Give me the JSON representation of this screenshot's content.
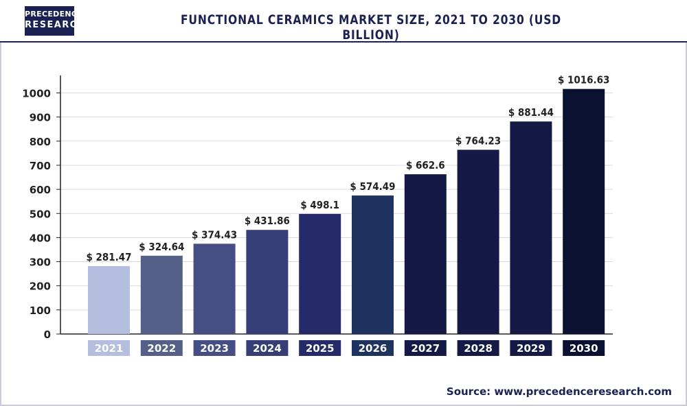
{
  "header": {
    "logo_line1": "PRECEDENCE",
    "logo_line2": "RESEARCH",
    "title": "FUNCTIONAL CERAMICS MARKET SIZE, 2021 TO 2030 (USD BILLION)"
  },
  "source": "Source: www.precedenceresearch.com",
  "chart_data": {
    "type": "bar",
    "title": "FUNCTIONAL CERAMICS MARKET SIZE, 2021 TO 2030 (USD BILLION)",
    "categories": [
      "2021",
      "2022",
      "2023",
      "2024",
      "2025",
      "2026",
      "2027",
      "2028",
      "2029",
      "2030"
    ],
    "values": [
      281.47,
      324.64,
      374.43,
      431.86,
      498.1,
      574.49,
      662.6,
      764.23,
      881.44,
      1016.63
    ],
    "value_labels": [
      "$ 281.47",
      "$ 324.64",
      "$ 374.43",
      "$ 431.86",
      "$ 498.1",
      "$ 574.49",
      "$ 662.6",
      "$ 764.23",
      "$ 881.44",
      "$ 1016.63"
    ],
    "bar_colors": [
      "#b4bedf",
      "#556089",
      "#454f85",
      "#363e77",
      "#252b69",
      "#1f3360",
      "#141a45",
      "#141a45",
      "#141a45",
      "#0b1131"
    ],
    "ylim": [
      0,
      1000
    ],
    "yticks": [
      "0",
      "100",
      "200",
      "300",
      "400",
      "500",
      "600",
      "700",
      "800",
      "900",
      "1000"
    ],
    "grid": true,
    "legend": "none"
  }
}
